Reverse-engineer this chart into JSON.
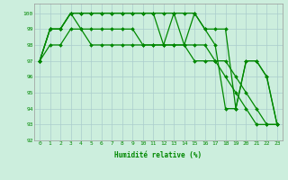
{
  "xlabel": "Humidité relative (%)",
  "background_color": "#cceedd",
  "grid_color": "#aacccc",
  "line_color": "#008800",
  "ylim": [
    92,
    100.6
  ],
  "xlim": [
    -0.5,
    23.5
  ],
  "yticks": [
    92,
    93,
    94,
    95,
    96,
    97,
    98,
    99,
    100
  ],
  "xticks": [
    0,
    1,
    2,
    3,
    4,
    5,
    6,
    7,
    8,
    9,
    10,
    11,
    12,
    13,
    14,
    15,
    16,
    17,
    18,
    19,
    20,
    21,
    22,
    23
  ],
  "series": [
    [
      97,
      99,
      99,
      100,
      100,
      100,
      100,
      100,
      100,
      100,
      100,
      100,
      100,
      100,
      100,
      100,
      99,
      99,
      99,
      94,
      97,
      97,
      96,
      93
    ],
    [
      97,
      99,
      99,
      100,
      100,
      100,
      100,
      100,
      100,
      100,
      100,
      100,
      98,
      100,
      98,
      100,
      99,
      98,
      94,
      94,
      97,
      97,
      96,
      93
    ],
    [
      97,
      99,
      99,
      100,
      99,
      99,
      99,
      99,
      99,
      99,
      98,
      98,
      98,
      98,
      98,
      98,
      98,
      97,
      96,
      95,
      94,
      93,
      93,
      93
    ],
    [
      97,
      98,
      98,
      99,
      99,
      98,
      98,
      98,
      98,
      98,
      98,
      98,
      98,
      98,
      98,
      97,
      97,
      97,
      97,
      96,
      95,
      94,
      93,
      93
    ]
  ]
}
